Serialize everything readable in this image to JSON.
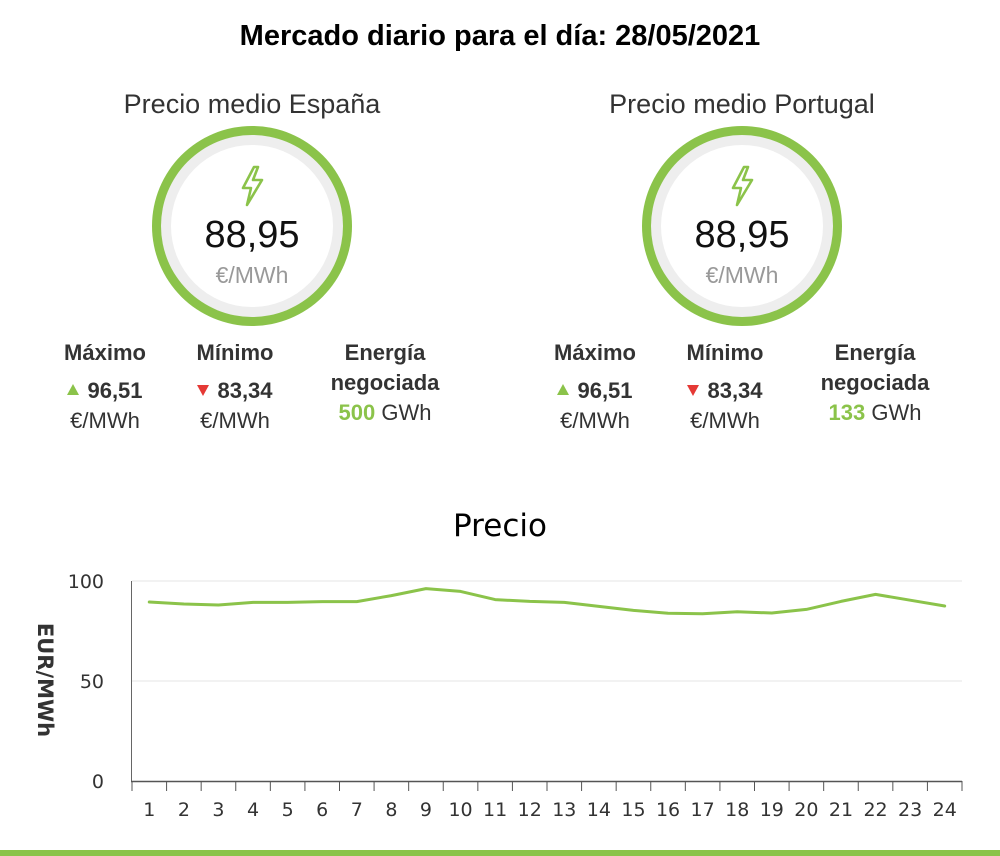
{
  "title": "Mercado diario para el día: 28/05/2021",
  "spain": {
    "title": "Precio medio España",
    "value": "88,95",
    "unit": "€/MWh",
    "max_label": "Máximo",
    "max_value": "96,51",
    "max_unit": "€/MWh",
    "min_label": "Mínimo",
    "min_value": "83,34",
    "min_unit": "€/MWh",
    "energy_label_1": "Energía",
    "energy_label_2": "negociada",
    "energy_value": "500",
    "energy_unit": "GWh"
  },
  "portugal": {
    "title": "Precio medio Portugal",
    "value": "88,95",
    "unit": "€/MWh",
    "max_label": "Máximo",
    "max_value": "96,51",
    "max_unit": "€/MWh",
    "min_label": "Mínimo",
    "min_value": "83,34",
    "min_unit": "€/MWh",
    "energy_label_1": "Energía",
    "energy_label_2": "negociada",
    "energy_value": "133",
    "energy_unit": "GWh"
  },
  "icons": {
    "gauge": "lightning-bolt-icon",
    "max": "triangle-up-icon",
    "min": "triangle-down-icon"
  },
  "colors": {
    "accent": "#8bc34a",
    "ring_background": "#eeeeee",
    "down": "#e53935",
    "unit_text": "#999999",
    "grid": "#e6e6e6"
  },
  "chart_data": {
    "type": "line",
    "title": "Precio",
    "xlabel": "",
    "ylabel": "EUR/MWh",
    "categories": [
      "1",
      "2",
      "3",
      "4",
      "5",
      "6",
      "7",
      "8",
      "9",
      "10",
      "11",
      "12",
      "13",
      "14",
      "15",
      "16",
      "17",
      "18",
      "19",
      "20",
      "21",
      "22",
      "23",
      "24"
    ],
    "series": [
      {
        "values": [
          89.5,
          88.5,
          88.0,
          89.3,
          89.3,
          89.7,
          89.7,
          92.7,
          96.2,
          94.8,
          90.7,
          89.8,
          89.3,
          87.3,
          85.3,
          83.9,
          83.6,
          84.6,
          84.0,
          85.8,
          89.8,
          93.3,
          90.4,
          87.5
        ]
      }
    ],
    "ylim": [
      0,
      100
    ],
    "yticks": [
      0,
      50,
      100
    ],
    "grid": true,
    "legend": "none"
  }
}
